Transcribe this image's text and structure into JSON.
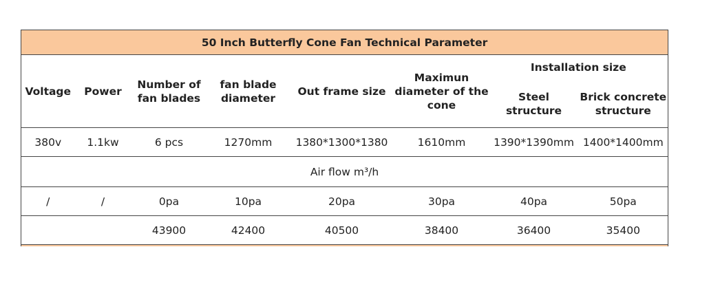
{
  "title": "50 Inch Butterfly Cone Fan Technical Parameter",
  "headers": {
    "voltage": [
      "Voltage"
    ],
    "power": [
      "Power"
    ],
    "blades": [
      "Number of",
      "fan blades"
    ],
    "diameter": [
      "fan blade",
      "diameter"
    ],
    "frame": [
      "Out frame size"
    ],
    "cone": [
      "Maximun",
      "diameter of the",
      "cone"
    ],
    "installation": "Installation size",
    "steel": [
      "Steel structure"
    ],
    "brick": [
      "Brick concrete",
      "structure"
    ]
  },
  "specs": [
    "380v",
    "1.1kw",
    "6 pcs",
    "1270mm",
    "1380*1300*1380",
    "1610mm",
    "1390*1390mm",
    "1400*1400mm"
  ],
  "airflow_title": "Air flow m³/h",
  "pressure_row": [
    "/",
    "/",
    "0pa",
    "10pa",
    "20pa",
    "30pa",
    "40pa",
    "50pa"
  ],
  "airflow_values": [
    43900,
    42400,
    40500,
    38400,
    36400,
    35400
  ]
}
